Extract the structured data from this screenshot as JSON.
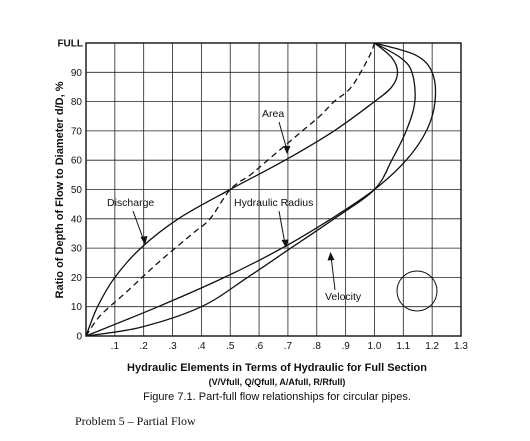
{
  "chart_data": {
    "type": "line",
    "title": "",
    "xlabel": "Hydraulic Elements in Terms of Hydraulic for Full Section",
    "xlabel_sub": "(V/Vfull, Q/Qfull, A/Afull, R/Rfull)",
    "ylabel": "Ratio of Depth of Flow to Diameter d/D, %",
    "xlim": [
      0,
      1.3
    ],
    "ylim": [
      0,
      100
    ],
    "x_ticks": [
      {
        "value": 0.1,
        "label": ".1"
      },
      {
        "value": 0.2,
        "label": ".2"
      },
      {
        "value": 0.3,
        "label": ".3"
      },
      {
        "value": 0.4,
        "label": ".4"
      },
      {
        "value": 0.5,
        "label": ".5"
      },
      {
        "value": 0.6,
        "label": ".6"
      },
      {
        "value": 0.7,
        "label": ".7"
      },
      {
        "value": 0.8,
        "label": ".8"
      },
      {
        "value": 0.9,
        "label": ".9"
      },
      {
        "value": 1.0,
        "label": "1.0"
      },
      {
        "value": 1.1,
        "label": "1.1"
      },
      {
        "value": 1.2,
        "label": "1.2"
      },
      {
        "value": 1.3,
        "label": "1.3"
      }
    ],
    "y_ticks": [
      {
        "value": 0,
        "label": "0"
      },
      {
        "value": 10,
        "label": "10"
      },
      {
        "value": 20,
        "label": "20"
      },
      {
        "value": 30,
        "label": "30"
      },
      {
        "value": 40,
        "label": "40"
      },
      {
        "value": 50,
        "label": "50"
      },
      {
        "value": 60,
        "label": "60"
      },
      {
        "value": 70,
        "label": "70"
      },
      {
        "value": 80,
        "label": "80"
      },
      {
        "value": 90,
        "label": "90"
      },
      {
        "value": 100,
        "label": "FULL"
      }
    ],
    "grid": true,
    "series": [
      {
        "name": "Area",
        "dashed": true,
        "points": [
          [
            0,
            0
          ],
          [
            0.05,
            7
          ],
          [
            0.14,
            15
          ],
          [
            0.25,
            25
          ],
          [
            0.37,
            35
          ],
          [
            0.43,
            40
          ],
          [
            0.5,
            50
          ],
          [
            0.57,
            55
          ],
          [
            0.63,
            60
          ],
          [
            0.75,
            70
          ],
          [
            0.81,
            75
          ],
          [
            0.86,
            80
          ],
          [
            0.92,
            85
          ],
          [
            0.98,
            95
          ],
          [
            1.0,
            100
          ]
        ]
      },
      {
        "name": "Discharge",
        "dashed": false,
        "points": [
          [
            0,
            0
          ],
          [
            0.04,
            10
          ],
          [
            0.1,
            20
          ],
          [
            0.19,
            30
          ],
          [
            0.32,
            40
          ],
          [
            0.5,
            50
          ],
          [
            0.69,
            60
          ],
          [
            0.86,
            70
          ],
          [
            1.0,
            80
          ],
          [
            1.06,
            85
          ],
          [
            1.08,
            90
          ],
          [
            1.06,
            95
          ],
          [
            1.0,
            100
          ]
        ]
      },
      {
        "name": "Hydraulic Radius",
        "dashed": false,
        "points": [
          [
            0,
            0
          ],
          [
            0.25,
            10
          ],
          [
            0.48,
            20
          ],
          [
            0.68,
            30
          ],
          [
            0.85,
            40
          ],
          [
            1.0,
            50
          ],
          [
            1.11,
            60
          ],
          [
            1.18,
            70
          ],
          [
            1.21,
            80
          ],
          [
            1.2,
            90
          ],
          [
            1.14,
            96
          ],
          [
            1.0,
            100
          ]
        ]
      },
      {
        "name": "Velocity",
        "dashed": false,
        "points": [
          [
            0,
            0
          ],
          [
            0.19,
            3
          ],
          [
            0.4,
            10
          ],
          [
            0.56,
            20
          ],
          [
            0.71,
            30
          ],
          [
            0.86,
            40
          ],
          [
            1.0,
            50
          ],
          [
            1.06,
            60
          ],
          [
            1.11,
            70
          ],
          [
            1.14,
            80
          ],
          [
            1.13,
            90
          ],
          [
            1.09,
            95
          ],
          [
            1.0,
            100
          ]
        ]
      }
    ],
    "annotations": [
      {
        "text": "Area"
      },
      {
        "text": "Discharge"
      },
      {
        "text": "Hydraulic Radius"
      },
      {
        "text": "Velocity"
      }
    ]
  },
  "caption": "Figure 7.1.  Part-full flow relationships for circular pipes.",
  "problem_text": "Problem 5 – Partial Flow"
}
